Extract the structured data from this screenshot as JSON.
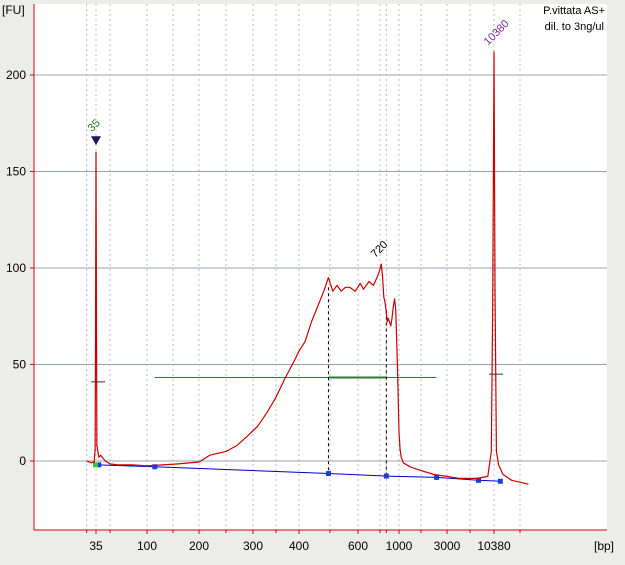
{
  "chart_data": {
    "type": "line",
    "title": "",
    "sample_name": "P.vittata AS+",
    "sample_note": "dil. to 3ng/ul",
    "y_unit_label": "[FU]",
    "x_unit_label": "[bp]",
    "ylim": [
      -35,
      235
    ],
    "y_ticks": [
      "0",
      "50",
      "100",
      "150",
      "200"
    ],
    "y_tick_values": [
      0,
      50,
      100,
      150,
      200
    ],
    "x_tick_labels": [
      "35",
      "100",
      "200",
      "300",
      "400",
      "600",
      "1000",
      "3000",
      "10380"
    ],
    "x_tick_bp": [
      35,
      100,
      200,
      300,
      400,
      600,
      1000,
      3000,
      10380
    ],
    "x_calibration_bp": [
      35,
      50,
      100,
      150,
      200,
      300,
      400,
      500,
      600,
      700,
      1000,
      2000,
      3000,
      7000,
      10380,
      15000
    ],
    "x_minor_bp": [
      25,
      50,
      150,
      250,
      350,
      500,
      700,
      800,
      2000,
      7000,
      15000
    ],
    "grid": true,
    "series": [
      {
        "color": "#cc0000",
        "points": [
          [
            25,
            0
          ],
          [
            28,
            -0.5
          ],
          [
            30,
            -1
          ],
          [
            32,
            -0.5
          ],
          [
            33,
            -1
          ],
          [
            34,
            6
          ],
          [
            34.5,
            60
          ],
          [
            35,
            160
          ],
          [
            35.5,
            70
          ],
          [
            36,
            8
          ],
          [
            38,
            2
          ],
          [
            40,
            3
          ],
          [
            45,
            0
          ],
          [
            50,
            -1.5
          ],
          [
            60,
            -2
          ],
          [
            80,
            -2
          ],
          [
            100,
            -2.5
          ],
          [
            130,
            -2
          ],
          [
            160,
            -1.5
          ],
          [
            200,
            -0.5
          ],
          [
            220,
            3
          ],
          [
            250,
            5
          ],
          [
            270,
            8
          ],
          [
            290,
            13
          ],
          [
            310,
            18
          ],
          [
            330,
            25
          ],
          [
            350,
            33
          ],
          [
            370,
            43
          ],
          [
            390,
            52
          ],
          [
            400,
            57
          ],
          [
            420,
            62
          ],
          [
            440,
            72
          ],
          [
            460,
            80
          ],
          [
            480,
            88
          ],
          [
            495,
            95
          ],
          [
            510,
            88
          ],
          [
            525,
            91
          ],
          [
            540,
            88
          ],
          [
            555,
            90
          ],
          [
            570,
            90
          ],
          [
            590,
            88
          ],
          [
            610,
            92
          ],
          [
            625,
            89
          ],
          [
            650,
            93
          ],
          [
            670,
            91
          ],
          [
            690,
            96
          ],
          [
            705,
            100
          ],
          [
            720,
            102
          ],
          [
            740,
            96
          ],
          [
            760,
            85
          ],
          [
            780,
            82
          ],
          [
            800,
            77
          ],
          [
            815,
            72
          ],
          [
            830,
            74
          ],
          [
            850,
            72
          ],
          [
            870,
            70
          ],
          [
            890,
            74
          ],
          [
            910,
            80
          ],
          [
            930,
            84
          ],
          [
            950,
            78
          ],
          [
            975,
            50
          ],
          [
            1000,
            15
          ],
          [
            1050,
            6
          ],
          [
            1100,
            2
          ],
          [
            1200,
            -1
          ],
          [
            1500,
            -3
          ],
          [
            2000,
            -5
          ],
          [
            2500,
            -7
          ],
          [
            3000,
            -8
          ],
          [
            5000,
            -9
          ],
          [
            8000,
            -9
          ],
          [
            9500,
            -8
          ],
          [
            10000,
            5
          ],
          [
            10200,
            80
          ],
          [
            10380,
            212
          ],
          [
            10550,
            90
          ],
          [
            10800,
            5
          ],
          [
            11200,
            -2
          ],
          [
            12000,
            -7
          ],
          [
            13500,
            -10
          ],
          [
            15000,
            -11
          ],
          [
            16500,
            -12
          ]
        ]
      }
    ],
    "peaks": [
      {
        "label": "35",
        "bp": 35,
        "fu": 160,
        "color": "#1f7a1f"
      },
      {
        "label": "720",
        "bp": 720,
        "fu": 102,
        "color": "#000000"
      },
      {
        "label": "10380",
        "bp": 10380,
        "fu": 212,
        "color": "#7a2aa8"
      }
    ],
    "baseline_points": [
      [
        34.5,
        -2
      ],
      [
        38,
        -2
      ],
      [
        115,
        -3
      ],
      [
        495,
        -6.5
      ],
      [
        800,
        -7.8
      ],
      [
        2600,
        -8.5
      ],
      [
        8200,
        -10
      ],
      [
        11500,
        -10.5
      ]
    ],
    "smear_region": {
      "from_bp": 115,
      "to_bp": 2600,
      "fu": 43
    },
    "smear_marker_dashes": [
      {
        "bp": 495,
        "from_fu": 90,
        "to_fu": -6.5
      },
      {
        "bp": 800,
        "from_fu": 78,
        "to_fu": -7.8
      }
    ],
    "peak_half_markers": [
      {
        "bp": 35,
        "fu": 41
      },
      {
        "bp": 10380,
        "fu": 45
      }
    ],
    "colors": {
      "trace": "#cc0000",
      "baseline": "#0000cc",
      "baseline_point": "#1a3fd6",
      "smear_bar": "#2e7a3a",
      "marker_triangle": "#1c1c5a",
      "plot_bg": "#ffffff",
      "grid": "#9aa0b0",
      "axis": "#e0000f",
      "frame_bg": "#ecece8"
    }
  }
}
